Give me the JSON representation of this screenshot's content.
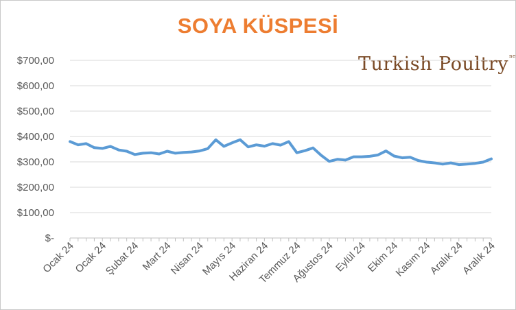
{
  "chart_data": {
    "type": "line",
    "title": "SOYA KÜSPESİ",
    "xlabel": "",
    "ylabel": "",
    "ylim": [
      0,
      700
    ],
    "yticks": [
      0,
      100,
      200,
      300,
      400,
      500,
      600,
      700
    ],
    "ytick_labels": [
      "$-",
      "$100,00",
      "$200,00",
      "$300,00",
      "$400,00",
      "$500,00",
      "$600,00",
      "$700,00"
    ],
    "grid": true,
    "legend": "none",
    "line_color": "#5b9bd5",
    "x_tick_labels": [
      "Ocak 24",
      "Ocak 24",
      "Şubat 24",
      "Mart 24",
      "Nisan 24",
      "Mayıs 24",
      "Haziran 24",
      "Temmuz 24",
      "Ağustos 24",
      "Eylül 24",
      "Ekim 24",
      "Kasım 24",
      "Aralık 24",
      "Aralık 24"
    ],
    "values": [
      380,
      367,
      372,
      356,
      353,
      361,
      347,
      342,
      329,
      334,
      336,
      331,
      342,
      334,
      337,
      339,
      343,
      352,
      387,
      361,
      375,
      387,
      359,
      367,
      362,
      372,
      366,
      380,
      336,
      344,
      355,
      326,
      302,
      310,
      307,
      320,
      320,
      322,
      327,
      343,
      323,
      316,
      318,
      305,
      299,
      296,
      291,
      296,
      289,
      291,
      294,
      299,
      312
    ]
  },
  "logo": {
    "text": "Turkish Poultry",
    "tag": "net"
  },
  "colors": {
    "title": "#ed7d31",
    "line": "#5b9bd5",
    "grid": "#d9d9d9",
    "axis": "#bfbfbf"
  }
}
